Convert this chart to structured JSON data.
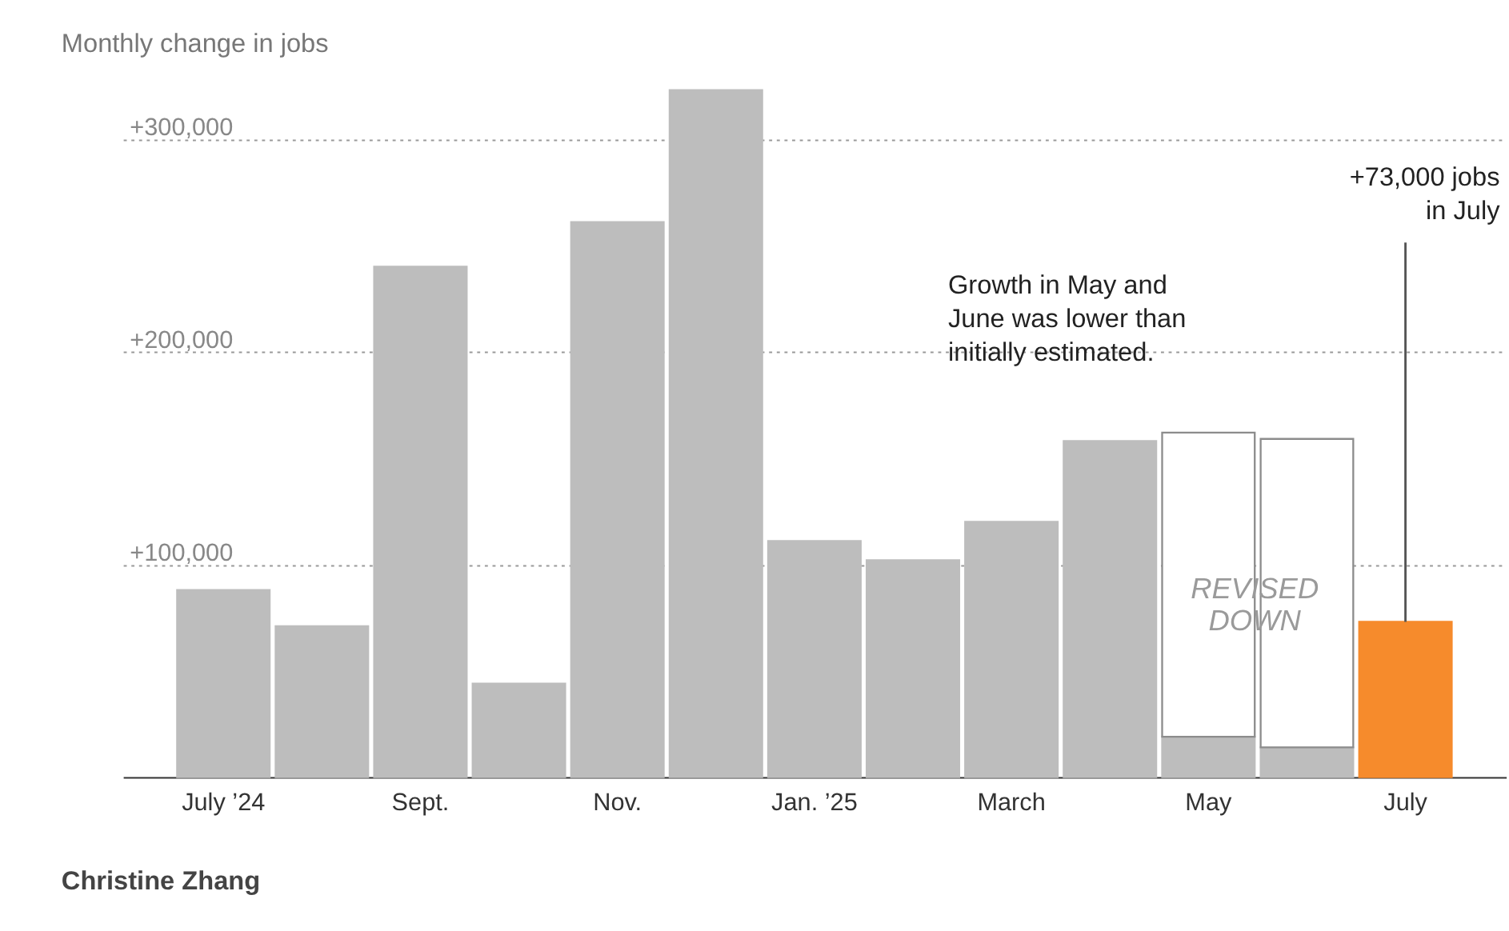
{
  "chart_data": {
    "type": "bar",
    "title": "Monthly change in jobs",
    "categories": [
      "July ’24",
      null,
      "Sept.",
      null,
      "Nov.",
      null,
      "Jan. ’25",
      null,
      "March",
      null,
      "May",
      null,
      "July"
    ],
    "stacked": true,
    "series": [
      {
        "colors": [
          "#bdbdbd",
          "#bdbdbd",
          "#bdbdbd",
          "#bdbdbd",
          "#bdbdbd",
          "#bdbdbd",
          "#bdbdbd",
          "#bdbdbd",
          "#bdbdbd",
          "#bdbdbd",
          "#bdbdbd",
          "#bdbdbd",
          "#f68b2c"
        ],
        "values": [
          88000,
          71000,
          240000,
          44000,
          261000,
          323000,
          111000,
          102000,
          120000,
          158000,
          19000,
          14000,
          73000
        ]
      },
      {
        "name": "REVISED DOWN",
        "color": "#ffffff",
        "values": [
          null,
          null,
          null,
          null,
          null,
          null,
          null,
          null,
          null,
          null,
          143000,
          145000,
          null
        ]
      }
    ],
    "ylim": [
      0,
      325000
    ],
    "yticks": [
      {
        "value": 100000,
        "label": "+100,000"
      },
      {
        "value": 200000,
        "label": "+200,000"
      },
      {
        "value": 300000,
        "label": "+300,000"
      }
    ],
    "grid": "y",
    "annotations": [
      {
        "text": "+73,000 jobs in July",
        "x": "July",
        "y": 73000
      },
      "Growth in May and June was lower than initially estimated.",
      "Christine Zhang"
    ]
  }
}
